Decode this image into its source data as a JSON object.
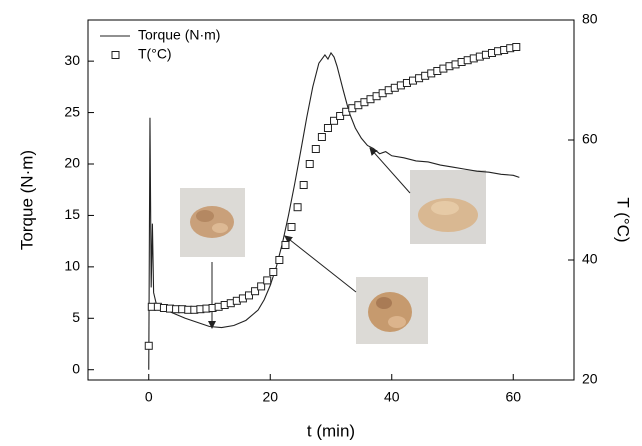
{
  "chart_data": {
    "type": "line",
    "xlabel": "t (min)",
    "ylabel": "Torque (N·m)",
    "y2label": "T (°C)",
    "xlim": [
      -10,
      70
    ],
    "xticks": [
      0,
      20,
      40,
      60
    ],
    "ylim": [
      -1,
      34
    ],
    "yticks": [
      0,
      5,
      10,
      15,
      20,
      25,
      30
    ],
    "y2lim": [
      20,
      80
    ],
    "y2ticks": [
      20,
      40,
      60,
      80
    ],
    "legend": "upper left",
    "series": [
      {
        "name": "Torque (N·m)",
        "color": "#222222",
        "marker": "none",
        "x": [
          0,
          0.2,
          0.4,
          0.6,
          0.8,
          1.2,
          2,
          4,
          6,
          8,
          10,
          12,
          14,
          16,
          18,
          19,
          20,
          21,
          22,
          23,
          24,
          25,
          26,
          27,
          28,
          29,
          29.5,
          30,
          30.5,
          31,
          32,
          33,
          34,
          35,
          36,
          37,
          38,
          39,
          40,
          42,
          44,
          46,
          48,
          50,
          52,
          54,
          56,
          58,
          60,
          61
        ],
        "values": [
          0,
          24.5,
          8,
          14.2,
          7.5,
          6.5,
          6,
          5.5,
          5,
          4.6,
          4.2,
          4.1,
          4.3,
          4.8,
          5.8,
          6.8,
          8.2,
          10,
          12.3,
          15,
          18,
          21.2,
          24.5,
          27.5,
          29.8,
          30.6,
          30.2,
          30.8,
          30.4,
          29.5,
          27.2,
          25,
          23.5,
          22.5,
          21.8,
          21.5,
          21.0,
          21.2,
          20.8,
          20.6,
          20.3,
          20.2,
          19.9,
          19.7,
          19.5,
          19.3,
          19.2,
          19.0,
          18.9,
          18.7
        ]
      },
      {
        "name": "T(°C)",
        "color": "#222222",
        "marker": "square-open",
        "axis": "y2",
        "x": [
          0,
          0.5,
          1.5,
          2.5,
          3.5,
          4.5,
          5.5,
          6.5,
          7.5,
          8.5,
          9.5,
          10.5,
          11.5,
          12.5,
          13.5,
          14.5,
          15.5,
          16.5,
          17.5,
          18.5,
          19.5,
          20.5,
          21.5,
          22.5,
          23.5,
          24.5,
          25.5,
          26.5,
          27.5,
          28.5,
          29.5,
          30.5,
          31.5,
          32.5,
          33.5,
          34.5,
          35.5,
          36.5,
          37.5,
          38.5,
          39.5,
          40.5,
          41.5,
          42.5,
          43.5,
          44.5,
          45.5,
          46.5,
          47.5,
          48.5,
          49.5,
          50.5,
          51.5,
          52.5,
          53.5,
          54.5,
          55.5,
          56.5,
          57.5,
          58.5,
          59.5,
          60.5
        ],
        "values": [
          25.7,
          32.2,
          32.2,
          32.0,
          31.9,
          31.8,
          31.8,
          31.7,
          31.7,
          31.8,
          31.9,
          32.0,
          32.2,
          32.5,
          32.8,
          33.2,
          33.6,
          34.1,
          34.8,
          35.6,
          36.6,
          38.0,
          40.0,
          42.5,
          45.5,
          48.8,
          52.5,
          56.0,
          58.5,
          60.5,
          62.0,
          63.2,
          64.0,
          64.7,
          65.3,
          65.8,
          66.3,
          66.8,
          67.3,
          67.8,
          68.3,
          68.7,
          69.1,
          69.5,
          69.9,
          70.3,
          70.7,
          71.1,
          71.5,
          71.9,
          72.3,
          72.6,
          73.0,
          73.3,
          73.6,
          73.9,
          74.2,
          74.5,
          74.8,
          75.0,
          75.3,
          75.5
        ]
      }
    ]
  }
}
